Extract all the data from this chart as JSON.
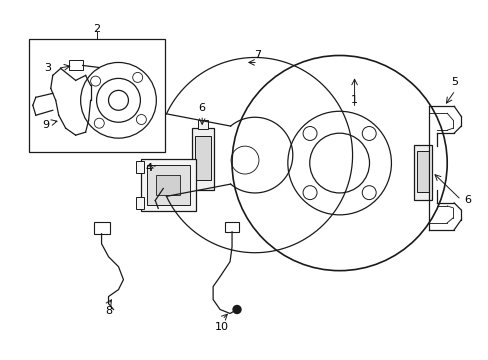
{
  "background_color": "#ffffff",
  "line_color": "#1a1a1a",
  "figsize": [
    4.89,
    3.6
  ],
  "dpi": 100,
  "label_fontsize": 8,
  "lw": 0.9
}
